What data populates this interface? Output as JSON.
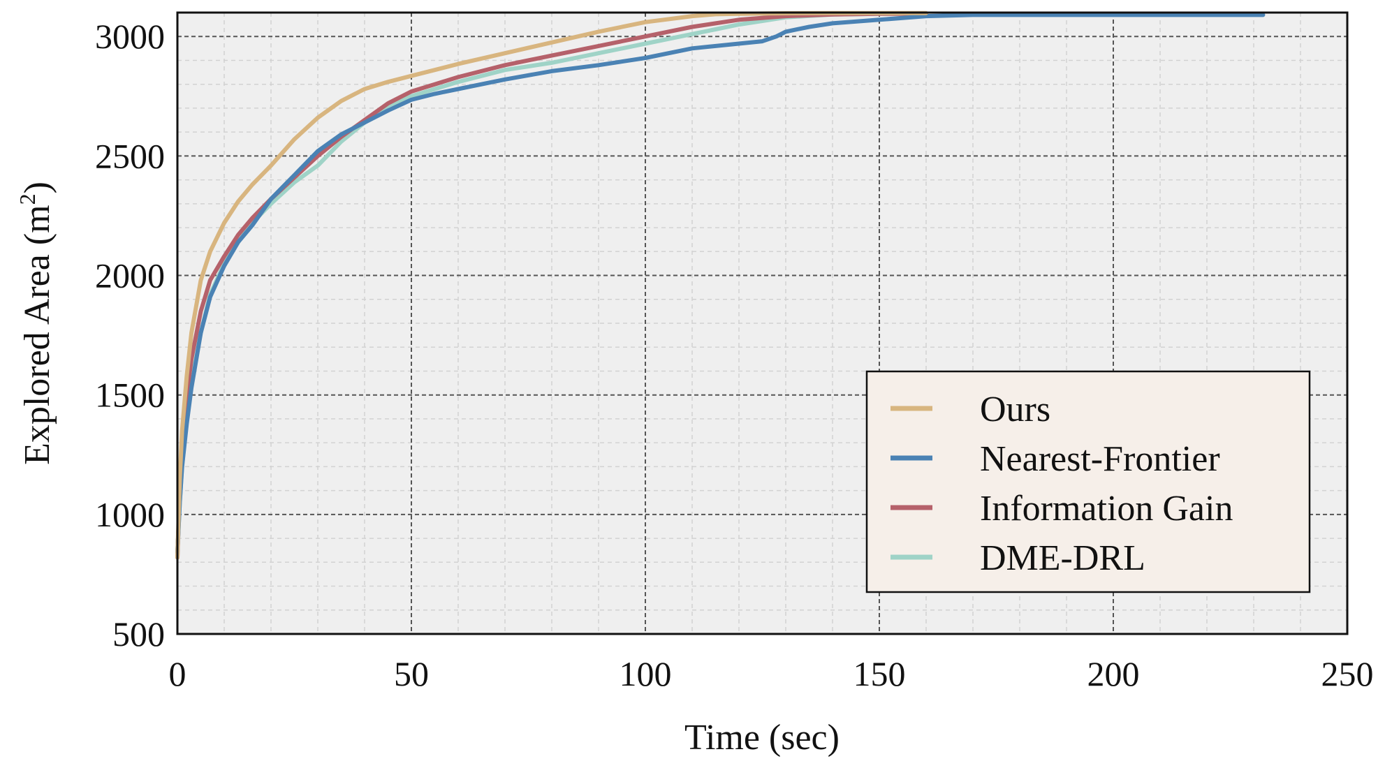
{
  "chart_data": {
    "type": "line",
    "title": "",
    "xlabel": "Time (sec)",
    "ylabel_main": "Explored Area (m",
    "ylabel_sup": "2",
    "ylabel_close": ")",
    "xlim": [
      0,
      250
    ],
    "ylim": [
      500,
      3100
    ],
    "xticks": [
      0,
      50,
      100,
      150,
      200,
      250
    ],
    "yticks": [
      500,
      1000,
      1500,
      2000,
      2500,
      3000
    ],
    "xtick_labels": [
      "0",
      "50",
      "100",
      "150",
      "200",
      "250"
    ],
    "ytick_labels": [
      "500",
      "1000",
      "1500",
      "2000",
      "2500",
      "3000"
    ],
    "x_minor_step": 10,
    "y_minor_step": 100,
    "grid": true,
    "legend_position": "lower-right",
    "series": [
      {
        "name": "Ours",
        "color": "#d8b57f",
        "x": [
          0,
          0.5,
          1,
          2,
          3,
          5,
          7,
          10,
          13,
          16,
          20,
          25,
          30,
          35,
          40,
          45,
          50,
          55,
          60,
          70,
          80,
          90,
          100,
          110,
          115,
          120,
          130,
          140,
          150,
          160
        ],
        "y": [
          820,
          1150,
          1350,
          1580,
          1760,
          1980,
          2100,
          2220,
          2310,
          2380,
          2460,
          2570,
          2660,
          2730,
          2780,
          2810,
          2835,
          2860,
          2885,
          2930,
          2975,
          3020,
          3060,
          3085,
          3093,
          3095,
          3097,
          3098,
          3098,
          3098
        ]
      },
      {
        "name": "Nearest-Frontier",
        "color": "#4a82b4",
        "x": [
          0,
          0.5,
          1,
          2,
          3,
          5,
          7,
          10,
          13,
          16,
          20,
          25,
          30,
          35,
          40,
          45,
          50,
          55,
          60,
          70,
          80,
          90,
          100,
          110,
          120,
          125,
          128,
          130,
          135,
          140,
          150,
          160,
          170,
          180,
          200,
          232
        ],
        "y": [
          840,
          1050,
          1200,
          1380,
          1530,
          1760,
          1910,
          2040,
          2140,
          2210,
          2320,
          2420,
          2520,
          2590,
          2640,
          2690,
          2735,
          2760,
          2780,
          2820,
          2855,
          2880,
          2910,
          2950,
          2970,
          2980,
          3000,
          3020,
          3040,
          3055,
          3070,
          3085,
          3090,
          3090,
          3090,
          3090
        ]
      },
      {
        "name": "Information Gain",
        "color": "#b5616a",
        "x": [
          0,
          0.5,
          1,
          2,
          3,
          5,
          7,
          10,
          13,
          16,
          20,
          25,
          30,
          35,
          40,
          45,
          50,
          55,
          60,
          70,
          80,
          90,
          100,
          110,
          120,
          130,
          140,
          150,
          160
        ],
        "y": [
          820,
          1100,
          1300,
          1500,
          1650,
          1850,
          1980,
          2080,
          2170,
          2240,
          2320,
          2410,
          2500,
          2580,
          2650,
          2720,
          2770,
          2800,
          2830,
          2880,
          2920,
          2960,
          3000,
          3040,
          3070,
          3085,
          3092,
          3095,
          3095
        ]
      },
      {
        "name": "DME-DRL",
        "color": "#9fd3c7",
        "x": [
          0,
          0.5,
          1,
          2,
          3,
          5,
          7,
          10,
          13,
          16,
          20,
          25,
          30,
          35,
          40,
          45,
          50,
          55,
          60,
          70,
          80,
          90,
          100,
          110,
          115,
          120,
          125,
          130,
          140,
          150,
          160
        ],
        "y": [
          840,
          1050,
          1200,
          1400,
          1550,
          1760,
          1920,
          2050,
          2140,
          2220,
          2300,
          2390,
          2460,
          2560,
          2640,
          2710,
          2750,
          2780,
          2810,
          2860,
          2890,
          2930,
          2970,
          3010,
          3030,
          3050,
          3065,
          3080,
          3092,
          3095,
          3095
        ]
      }
    ]
  }
}
